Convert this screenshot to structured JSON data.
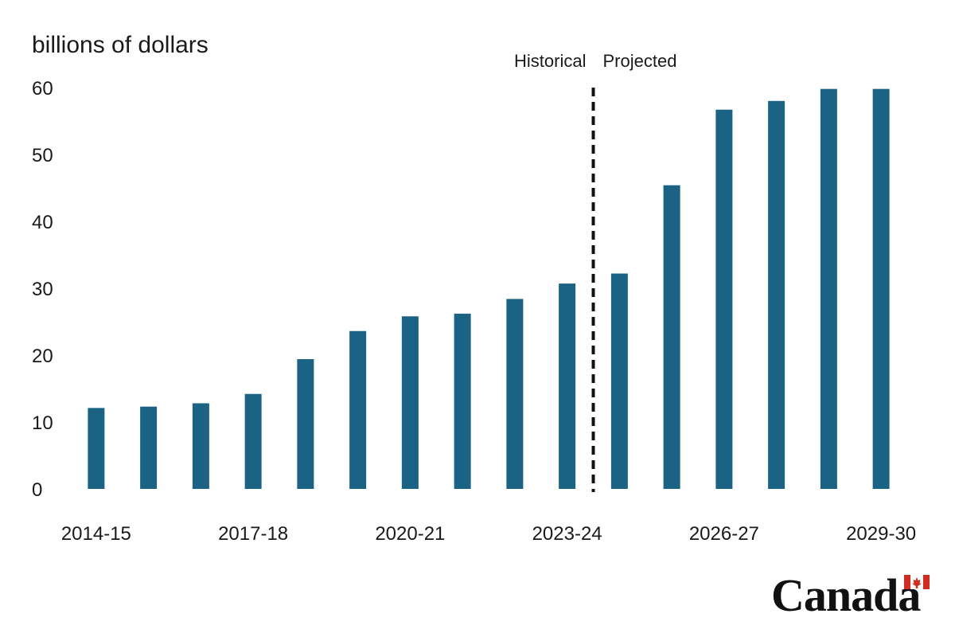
{
  "chart_data": {
    "type": "bar",
    "ylabel": "billions of dollars",
    "xlabel": "",
    "title": "",
    "ylim": [
      0,
      60
    ],
    "yticks": [
      0,
      10,
      20,
      30,
      40,
      50,
      60
    ],
    "categories": [
      "2014-15",
      "2015-16",
      "2016-17",
      "2017-18",
      "2018-19",
      "2019-20",
      "2020-21",
      "2021-22",
      "2022-23",
      "2023-24",
      "2024-25",
      "2025-26",
      "2026-27",
      "2027-28",
      "2028-29",
      "2029-30"
    ],
    "tick_labels_shown": [
      "2014-15",
      "2017-18",
      "2020-21",
      "2023-24",
      "2026-27",
      "2029-30"
    ],
    "values": [
      12.1,
      12.3,
      12.8,
      14.2,
      19.4,
      23.6,
      25.8,
      26.2,
      28.4,
      30.7,
      32.2,
      45.4,
      56.7,
      58.0,
      59.8,
      59.8
    ],
    "grid": false,
    "legend": "none",
    "period_labels": {
      "historical": "Historical",
      "projected": "Projected"
    },
    "divider_after_category": "2023-24",
    "bar_color": "#1b6385"
  },
  "branding": {
    "wordmark": "Canada",
    "flag_colors": {
      "red": "#d52b1e",
      "white": "#ffffff"
    }
  }
}
